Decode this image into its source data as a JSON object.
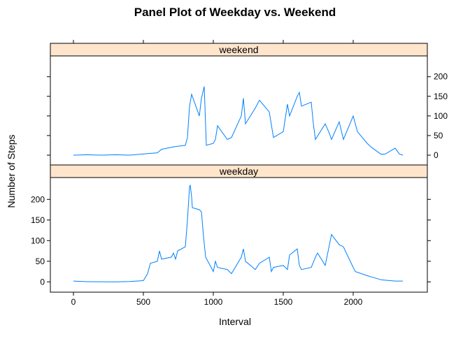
{
  "chart_data": {
    "type": "line",
    "title": "Panel Plot of Weekday vs. Weekend",
    "xlabel": "Interval",
    "ylabel": "Number of Steps",
    "color": "#0080ff",
    "xlim": [
      -165,
      2530
    ],
    "xticks": [
      0,
      500,
      1000,
      1500,
      2000
    ],
    "ylim": [
      -25,
      253
    ],
    "yticks": [
      0,
      50,
      100,
      150,
      200
    ],
    "panels": [
      {
        "name": "weekend",
        "x": [
          0,
          100,
          200,
          300,
          400,
          500,
          600,
          630,
          700,
          730,
          800,
          815,
          830,
          845,
          900,
          915,
          935,
          950,
          1000,
          1015,
          1030,
          1100,
          1130,
          1200,
          1215,
          1230,
          1300,
          1330,
          1400,
          1430,
          1500,
          1530,
          1545,
          1600,
          1615,
          1630,
          1700,
          1715,
          1730,
          1800,
          1830,
          1845,
          1900,
          1930,
          2000,
          2030,
          2100,
          2130,
          2200,
          2230,
          2300,
          2330,
          2355
        ],
        "values": [
          0,
          1,
          0,
          1,
          0,
          3,
          6,
          15,
          20,
          22,
          25,
          45,
          125,
          155,
          100,
          145,
          175,
          25,
          30,
          40,
          75,
          40,
          45,
          100,
          145,
          80,
          120,
          140,
          110,
          45,
          60,
          130,
          100,
          150,
          160,
          125,
          135,
          80,
          40,
          80,
          55,
          40,
          85,
          40,
          100,
          60,
          30,
          20,
          2,
          3,
          18,
          3,
          0
        ]
      },
      {
        "name": "weekday",
        "x": [
          0,
          100,
          200,
          300,
          400,
          500,
          530,
          550,
          600,
          615,
          630,
          700,
          715,
          730,
          745,
          800,
          815,
          830,
          835,
          845,
          850,
          900,
          915,
          930,
          945,
          1000,
          1015,
          1030,
          1100,
          1130,
          1200,
          1215,
          1230,
          1300,
          1330,
          1400,
          1415,
          1430,
          1500,
          1530,
          1545,
          1600,
          1615,
          1630,
          1700,
          1730,
          1745,
          1800,
          1830,
          1845,
          1900,
          1930,
          2000,
          2015,
          2100,
          2130,
          2200,
          2230,
          2300,
          2355
        ],
        "values": [
          2,
          0.5,
          0.2,
          0,
          1,
          3,
          20,
          45,
          50,
          75,
          55,
          60,
          70,
          55,
          75,
          85,
          150,
          230,
          235,
          205,
          180,
          175,
          170,
          110,
          60,
          25,
          50,
          35,
          30,
          20,
          60,
          80,
          50,
          30,
          45,
          60,
          25,
          35,
          40,
          30,
          65,
          80,
          40,
          30,
          35,
          60,
          70,
          40,
          90,
          115,
          90,
          85,
          35,
          25,
          15,
          12,
          5,
          4,
          2,
          2
        ]
      }
    ]
  }
}
